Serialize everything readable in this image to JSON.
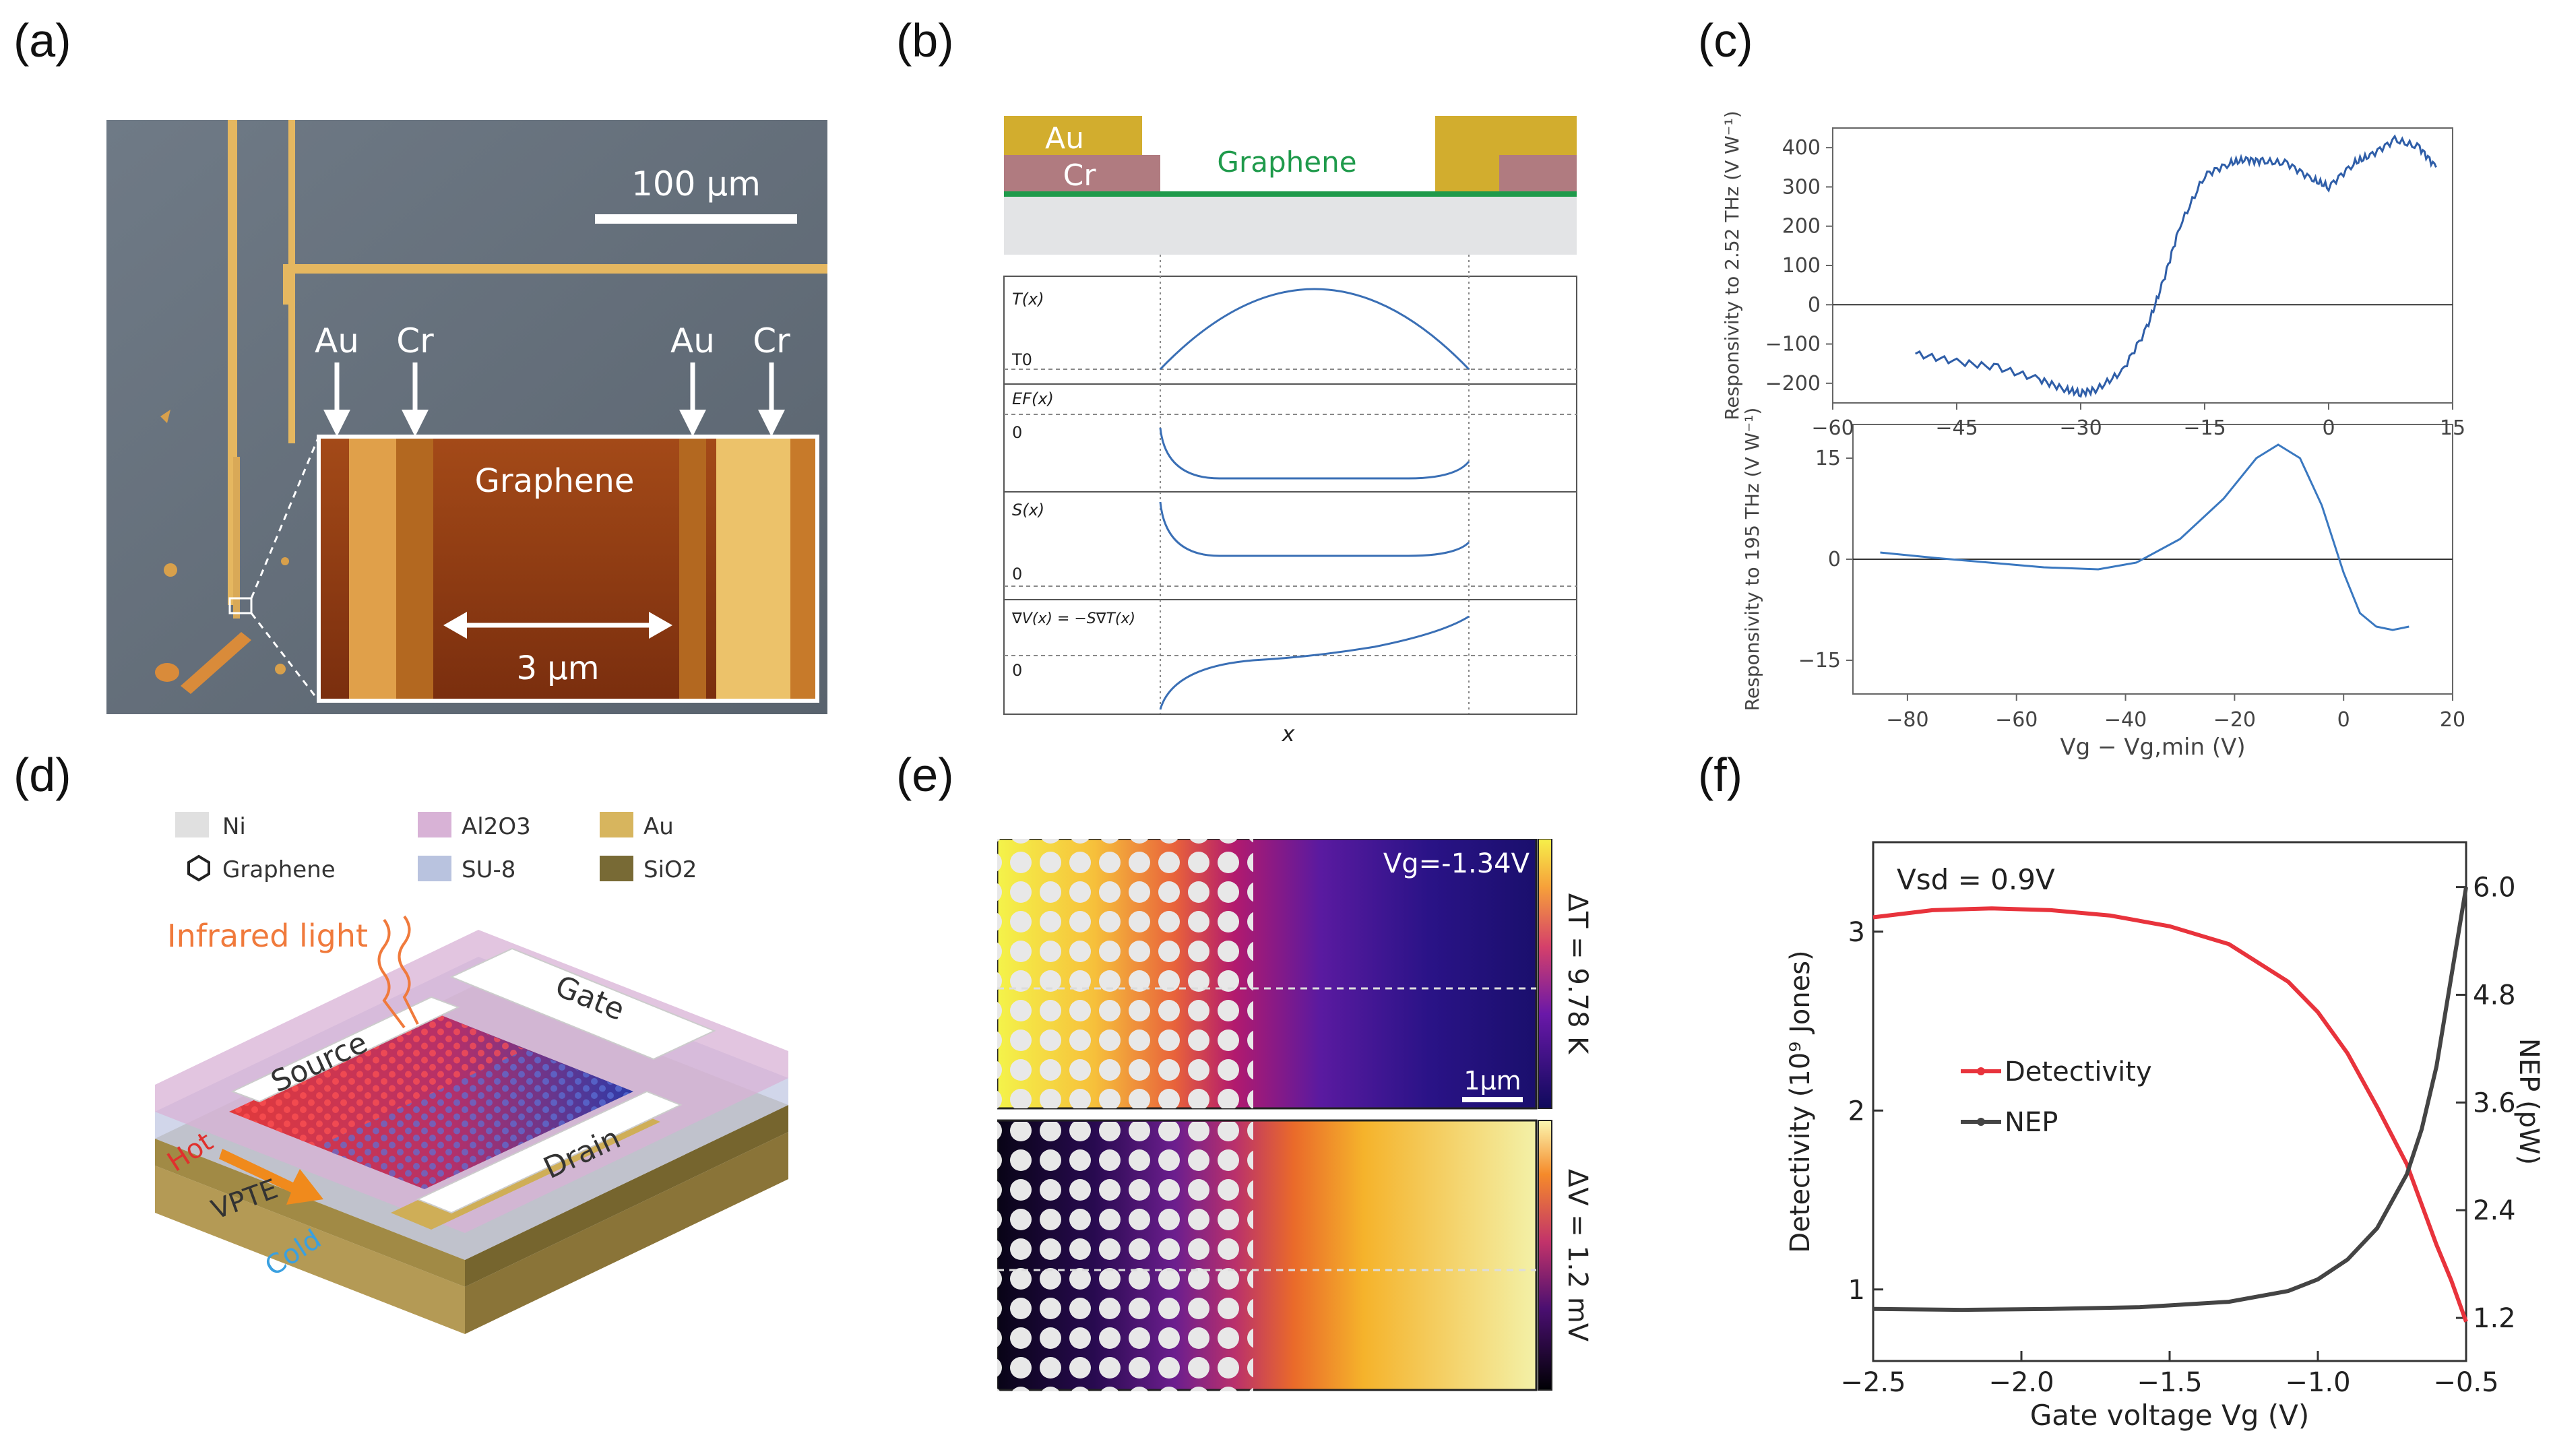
{
  "labels": {
    "a": "(a)",
    "b": "(b)",
    "c": "(c)",
    "d": "(d)",
    "e": "(e)",
    "f": "(f)"
  },
  "panel_a": {
    "scale_bar": "100 µm",
    "top_labels": [
      "Au",
      "Cr",
      "Au",
      "Cr"
    ],
    "inset_title": "Graphene",
    "inset_scale": "3 µm"
  },
  "panel_b": {
    "au": "Au",
    "cr": "Cr",
    "graphene": "Graphene",
    "rows": [
      {
        "name": "T(x)",
        "base": "T0"
      },
      {
        "name": "EF(x)",
        "base": "0"
      },
      {
        "name": "S(x)",
        "base": "0"
      },
      {
        "name": "∇V(x) = −S∇T(x)",
        "base": "0"
      }
    ],
    "xlabel": "x",
    "colors": {
      "au": "#d2ad2e",
      "cr": "#b07b80",
      "graphene": "#1f9a4b",
      "substrate": "#e3e4e6",
      "curve": "#3a6fb5"
    }
  },
  "panel_d": {
    "legend": [
      {
        "label": "Ni",
        "color": "#e0e0e0"
      },
      {
        "label": "Al2O3",
        "color": "#d8b2d6"
      },
      {
        "label": "Au",
        "color": "#d7b55e"
      },
      {
        "label": "Graphene",
        "color": "#ffffff"
      },
      {
        "label": "SU-8",
        "color": "#b9c3df"
      },
      {
        "label": "SiO2",
        "color": "#786a35"
      }
    ],
    "infrared": "Infrared light",
    "source": "Source",
    "gate": "Gate",
    "drain": "Drain",
    "hot": "Hot",
    "cold": "Cold",
    "vpte": "VPTE"
  },
  "panel_e": {
    "top_vg": "Vg=-1.34V",
    "top_cbar": "ΔT = 9.78 K",
    "scale": "1µm",
    "bottom_cbar": "ΔV = 1.2 mV"
  },
  "chart_data": [
    {
      "id": "c-top",
      "type": "line",
      "ylabel": "Responsivity to 2.52 THz (V W⁻¹)",
      "xlim": [
        -60,
        15
      ],
      "ylim": [
        -250,
        450
      ],
      "xticks": [
        -60,
        -45,
        -30,
        -15,
        0,
        15
      ],
      "yticks": [
        -200,
        -100,
        0,
        100,
        200,
        300,
        400
      ],
      "x": [
        -50,
        -45,
        -40,
        -35,
        -32,
        -30,
        -28,
        -25,
        -22,
        -20,
        -18,
        -15,
        -12,
        -10,
        -8,
        -5,
        -2,
        0,
        3,
        5,
        8,
        11,
        13
      ],
      "y": [
        -125,
        -145,
        -160,
        -190,
        -215,
        -225,
        -215,
        -170,
        -60,
        60,
        200,
        330,
        360,
        370,
        365,
        360,
        320,
        300,
        360,
        380,
        420,
        400,
        350
      ]
    },
    {
      "id": "c-bottom",
      "type": "line",
      "ylabel": "Responsivity to 195 THz (V W⁻¹)",
      "xlabel": "Vg − Vg,min (V)",
      "xlim": [
        -90,
        20
      ],
      "ylim": [
        -20,
        20
      ],
      "xticks": [
        -80,
        -60,
        -40,
        -20,
        0,
        20
      ],
      "yticks": [
        -15,
        0,
        15
      ],
      "x": [
        -85,
        -75,
        -65,
        -55,
        -45,
        -38,
        -30,
        -22,
        -16,
        -12,
        -8,
        -4,
        0,
        3,
        6,
        9,
        12
      ],
      "y": [
        1,
        0.2,
        -0.5,
        -1.2,
        -1.5,
        -0.5,
        3,
        9,
        15,
        17,
        15,
        8,
        -2,
        -8,
        -10,
        -10.5,
        -10
      ]
    },
    {
      "id": "f",
      "type": "line",
      "xlabel": "Gate voltage Vg (V)",
      "ylabel_left": "Detectivity (10⁹ Jones)",
      "ylabel_right": "NEP (pW)",
      "annotation": "Vsd = 0.9V",
      "xlim": [
        -2.5,
        -0.5
      ],
      "ylim_left": [
        0.6,
        3.5
      ],
      "ylim_right": [
        0.72,
        6.5
      ],
      "xticks": [
        -2.5,
        -2.0,
        -1.5,
        -1.0,
        -0.5
      ],
      "yticks_left": [
        1,
        2,
        3
      ],
      "yticks_right": [
        1.2,
        2.4,
        3.6,
        4.8,
        6.0
      ],
      "series": [
        {
          "name": "Detectivity",
          "axis": "left",
          "color": "#e8333c",
          "x": [
            -2.5,
            -2.3,
            -2.1,
            -1.9,
            -1.7,
            -1.5,
            -1.3,
            -1.1,
            -1.0,
            -0.9,
            -0.8,
            -0.7,
            -0.6,
            -0.55,
            -0.5
          ],
          "y": [
            3.08,
            3.12,
            3.13,
            3.12,
            3.09,
            3.03,
            2.93,
            2.72,
            2.55,
            2.32,
            2.02,
            1.7,
            1.25,
            1.05,
            0.82
          ]
        },
        {
          "name": "NEP",
          "axis": "right",
          "color": "#444444",
          "x": [
            -2.5,
            -2.2,
            -1.9,
            -1.6,
            -1.3,
            -1.1,
            -1.0,
            -0.9,
            -0.8,
            -0.7,
            -0.65,
            -0.6,
            -0.55,
            -0.5
          ],
          "y": [
            1.3,
            1.29,
            1.3,
            1.32,
            1.38,
            1.5,
            1.63,
            1.85,
            2.2,
            2.8,
            3.3,
            4.0,
            5.0,
            6.0
          ]
        }
      ]
    }
  ]
}
